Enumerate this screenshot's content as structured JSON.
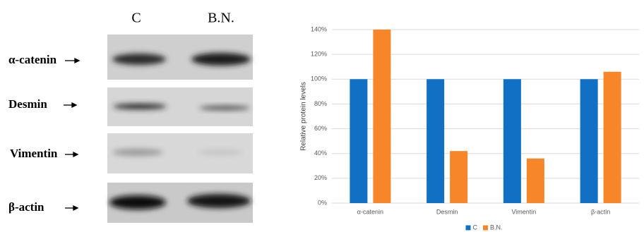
{
  "blot": {
    "columns": [
      "C",
      "B.N."
    ],
    "rows": [
      "α-catenin",
      "Desmin",
      "Vimentin",
      "β-actin"
    ]
  },
  "chart_data": {
    "type": "bar",
    "y_label": "Relative protein levels",
    "categories": [
      "α-catenin",
      "Desmin",
      "Vimentin",
      "β-actin"
    ],
    "series": [
      {
        "name": "C",
        "color": "#1170c4",
        "values": [
          100,
          100,
          100,
          100
        ]
      },
      {
        "name": "B.N.",
        "color": "#f7862a",
        "values": [
          140,
          42,
          36,
          106
        ]
      }
    ],
    "ylim": [
      0,
      140
    ],
    "yticks": [
      {
        "value": 0,
        "label": "0%"
      },
      {
        "value": 20,
        "label": "20%"
      },
      {
        "value": 40,
        "label": "40%"
      },
      {
        "value": 60,
        "label": "60%"
      },
      {
        "value": 80,
        "label": "80%"
      },
      {
        "value": 100,
        "label": "100%"
      },
      {
        "value": 120,
        "label": "120%"
      },
      {
        "value": 140,
        "label": "140%"
      }
    ],
    "grid": true,
    "legend": "bottom"
  }
}
